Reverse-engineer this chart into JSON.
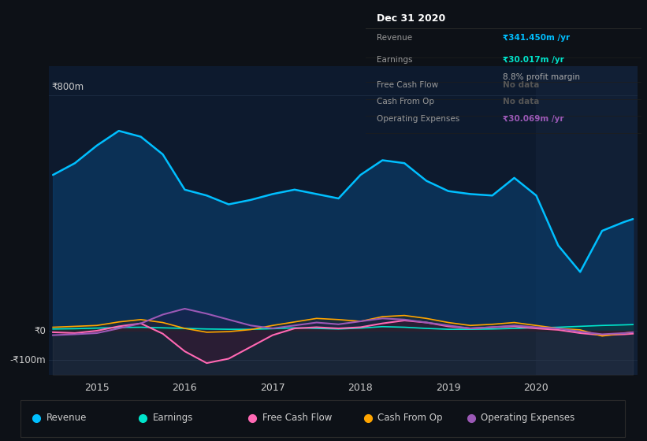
{
  "bg_color": "#0d1117",
  "plot_bg_color": "#0d1a2e",
  "highlight_bg_color": "#111f35",
  "grid_color": "#1a2a40",
  "ylim_low": -150,
  "ylim_high": 900,
  "y_zero": 0,
  "y_max": 800,
  "y_min": -100,
  "text_color": "#cccccc",
  "revenue_color": "#00bfff",
  "earnings_color": "#00e5cc",
  "fcf_color": "#ff69b4",
  "cfo_color": "#ffa500",
  "opex_color": "#9b59b6",
  "revenue_fill": "#0a3d6b",
  "earnings_fill": "#0a3d38",
  "table_bg": "#080808",
  "table_border_color": "#2a2a2a",
  "legend_border": "#2a2a2a",
  "legend_items": [
    {
      "label": "Revenue",
      "color": "#00bfff"
    },
    {
      "label": "Earnings",
      "color": "#00e5cc"
    },
    {
      "label": "Free Cash Flow",
      "color": "#ff69b4"
    },
    {
      "label": "Cash From Op",
      "color": "#ffa500"
    },
    {
      "label": "Operating Expenses",
      "color": "#9b59b6"
    }
  ],
  "years": [
    2014.5,
    2014.75,
    2015.0,
    2015.25,
    2015.5,
    2015.75,
    2016.0,
    2016.25,
    2016.5,
    2016.75,
    2017.0,
    2017.25,
    2017.5,
    2017.75,
    2018.0,
    2018.25,
    2018.5,
    2018.75,
    2019.0,
    2019.25,
    2019.5,
    2019.75,
    2020.0,
    2020.25,
    2020.5,
    2020.75,
    2021.0,
    2021.1
  ],
  "revenue": [
    530,
    570,
    630,
    680,
    660,
    600,
    480,
    460,
    430,
    445,
    465,
    480,
    465,
    450,
    530,
    580,
    570,
    510,
    475,
    465,
    460,
    520,
    460,
    290,
    200,
    340,
    370,
    380
  ],
  "earnings": [
    6,
    7,
    9,
    11,
    12,
    10,
    8,
    6,
    5,
    5,
    7,
    10,
    8,
    6,
    9,
    14,
    12,
    8,
    5,
    5,
    6,
    8,
    10,
    12,
    15,
    18,
    20,
    21
  ],
  "fcf": [
    -5,
    -8,
    0,
    15,
    25,
    -10,
    -70,
    -110,
    -95,
    -55,
    -15,
    8,
    12,
    8,
    12,
    25,
    35,
    28,
    15,
    8,
    12,
    15,
    8,
    3,
    -8,
    -15,
    -12,
    -10
  ],
  "cfo": [
    12,
    15,
    18,
    30,
    38,
    28,
    8,
    -5,
    -3,
    4,
    18,
    30,
    42,
    38,
    32,
    48,
    52,
    42,
    28,
    18,
    22,
    28,
    18,
    8,
    3,
    -18,
    -8,
    -5
  ],
  "opex": [
    -15,
    -12,
    -8,
    8,
    25,
    55,
    75,
    58,
    38,
    18,
    8,
    18,
    28,
    22,
    32,
    42,
    38,
    28,
    18,
    8,
    12,
    18,
    12,
    8,
    -3,
    -12,
    -8,
    -5
  ],
  "highlight_start": 2020.0,
  "highlight_end": 2021.15,
  "xtick_years": [
    2015,
    2016,
    2017,
    2018,
    2019,
    2020
  ],
  "xmin": 2014.45,
  "xmax": 2021.15,
  "table_title": "Dec 31 2020",
  "table_rows": [
    {
      "label": "Revenue",
      "value": "₹341.450m /yr",
      "value_color": "#00bfff",
      "sub": null
    },
    {
      "label": "Earnings",
      "value": "₹30.017m /yr",
      "value_color": "#00e5cc",
      "sub": "8.8% profit margin"
    },
    {
      "label": "Free Cash Flow",
      "value": "No data",
      "value_color": "#555555",
      "sub": null
    },
    {
      "label": "Cash From Op",
      "value": "No data",
      "value_color": "#555555",
      "sub": null
    },
    {
      "label": "Operating Expenses",
      "value": "₹30.069m /yr",
      "value_color": "#9b59b6",
      "sub": null
    }
  ]
}
